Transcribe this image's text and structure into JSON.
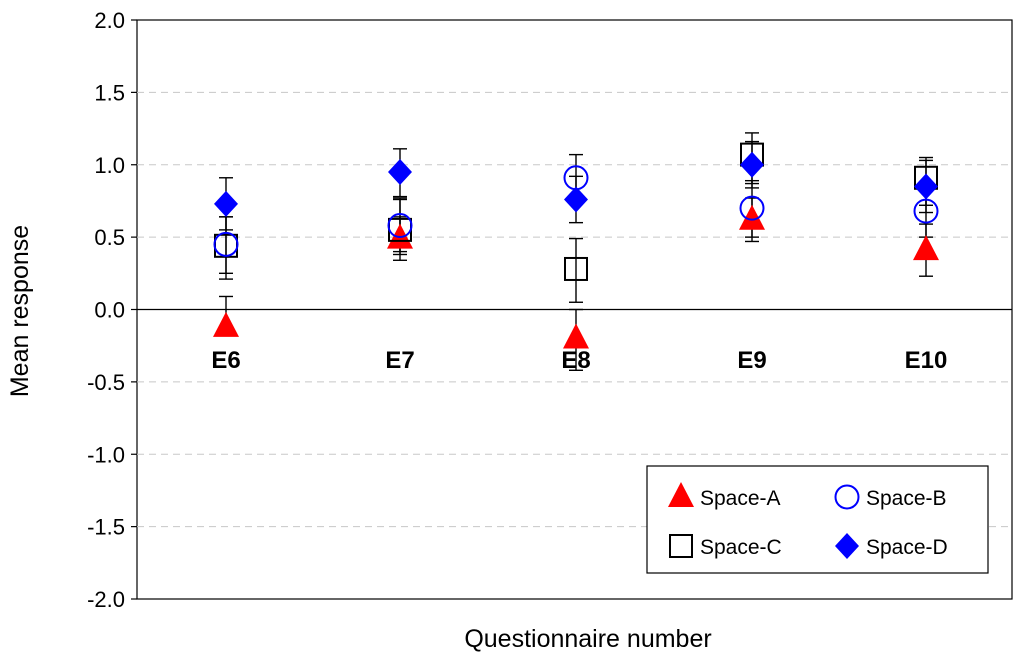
{
  "chart_data": {
    "type": "scatter",
    "title": "",
    "xlabel": "Questionnaire number",
    "ylabel": "Mean response",
    "ylim": [
      -2.0,
      2.0
    ],
    "yticks": [
      "2.0",
      "1.5",
      "1.0",
      "0.5",
      "0.0",
      "-0.5",
      "-1.0",
      "-1.5",
      "-2.0"
    ],
    "ytick_values": [
      2.0,
      1.5,
      1.0,
      0.5,
      0.0,
      -0.5,
      -1.0,
      -1.5,
      -2.0
    ],
    "categories": [
      "E6",
      "E7",
      "E8",
      "E9",
      "E10"
    ],
    "grid": "horizontal dashed",
    "legend": "bottom-right",
    "series": [
      {
        "name": "Space-A",
        "marker": "filled-triangle",
        "color": "#ff0000",
        "values": [
          -0.12,
          0.49,
          -0.2,
          0.62,
          0.41
        ],
        "err_low": [
          null,
          0.34,
          -0.42,
          0.47,
          0.23
        ],
        "err_high": [
          0.09,
          0.64,
          0.0,
          0.77,
          0.59
        ]
      },
      {
        "name": "Space-B",
        "marker": "open-circle",
        "color": "#0000ff",
        "values": [
          0.45,
          0.58,
          0.91,
          0.7,
          0.68
        ],
        "err_low": [
          0.25,
          0.4,
          0.75,
          0.5,
          0.5
        ],
        "err_high": [
          0.64,
          0.76,
          1.07,
          0.89,
          0.85
        ]
      },
      {
        "name": "Space-C",
        "marker": "open-square",
        "color": "#000000",
        "values": [
          0.44,
          0.55,
          0.28,
          1.07,
          0.91
        ],
        "err_low": [
          0.21,
          0.38,
          0.05,
          0.87,
          0.72
        ],
        "err_high": [
          0.64,
          0.77,
          0.49,
          1.22,
          1.05
        ]
      },
      {
        "name": "Space-D",
        "marker": "filled-diamond",
        "color": "#0000ff",
        "values": [
          0.73,
          0.95,
          0.76,
          1.0,
          0.85
        ],
        "err_low": [
          0.55,
          0.78,
          0.6,
          0.84,
          0.67
        ],
        "err_high": [
          0.91,
          1.11,
          0.92,
          1.16,
          1.03
        ]
      }
    ]
  }
}
